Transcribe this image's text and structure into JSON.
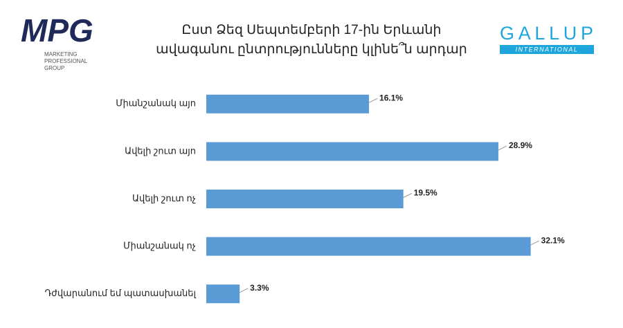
{
  "logos": {
    "left": {
      "name": "MPG",
      "tagline": [
        "MARKETING",
        "PROFESSIONAL",
        "GROUP"
      ]
    },
    "right": {
      "name": "GALLUP",
      "tagline": "INTERNATIONAL"
    }
  },
  "chart_data": {
    "type": "bar",
    "orientation": "horizontal",
    "title": [
      "Ըստ Ձեզ Սեպտեմբերի 17-ին Երևանի",
      "ավագանու ընտրությունները կլինե՞ն արդար"
    ],
    "categories": [
      "Միանշանակ այո",
      "Ավելի շուտ այո",
      "Ավելի շուտ ոչ",
      "Միանշանակ ոչ",
      "Դժվարանում եմ պատասխանել"
    ],
    "values": [
      16.1,
      28.9,
      19.5,
      32.1,
      3.3
    ],
    "value_labels": [
      "16.1%",
      "28.9%",
      "19.5%",
      "32.1%",
      "3.3%"
    ],
    "color": "#5b9bd5",
    "xlim": [
      0,
      35
    ]
  }
}
